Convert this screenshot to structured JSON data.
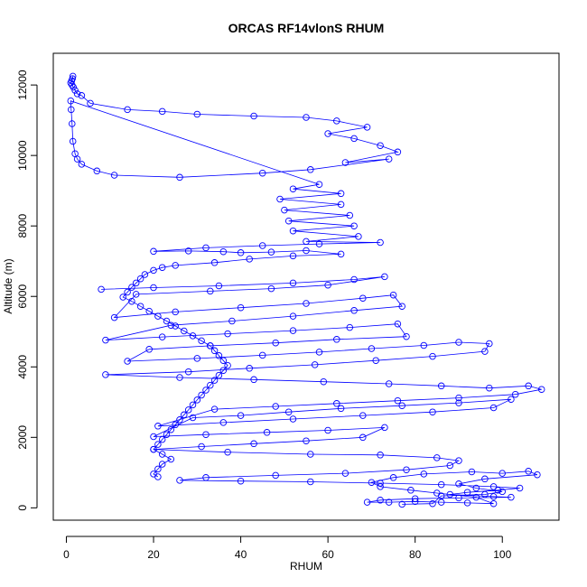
{
  "chart_data": {
    "type": "line",
    "title": "ORCAS RF14vlonS RHUM",
    "xlabel": "RHUM",
    "ylabel": "Altitude (m)",
    "xlim": [
      -3,
      113
    ],
    "ylim": [
      -350,
      12900
    ],
    "xticks": [
      0,
      20,
      40,
      60,
      80,
      100
    ],
    "yticks": [
      0,
      2000,
      4000,
      6000,
      8000,
      10000,
      12000
    ],
    "grid": false,
    "legend": "none",
    "marker": "open-circle",
    "color": "#0000ff",
    "series": [
      {
        "points": [
          [
            1.5,
            12250
          ],
          [
            1.4,
            12180
          ],
          [
            1.2,
            12120
          ],
          [
            1.0,
            12060
          ],
          [
            1.3,
            12000
          ],
          [
            1.6,
            11940
          ],
          [
            2.0,
            11850
          ],
          [
            2.5,
            11750
          ],
          [
            3.5,
            11700
          ],
          [
            5.5,
            11480
          ],
          [
            14,
            11300
          ],
          [
            22,
            11250
          ],
          [
            30,
            11170
          ],
          [
            43,
            11120
          ],
          [
            55,
            11080
          ],
          [
            62,
            10980
          ],
          [
            69,
            10800
          ],
          [
            60,
            10620
          ],
          [
            66,
            10480
          ],
          [
            72,
            10280
          ],
          [
            76,
            10100
          ],
          [
            64,
            9800
          ],
          [
            74,
            9900
          ],
          [
            56,
            9600
          ],
          [
            45,
            9500
          ],
          [
            26,
            9380
          ],
          [
            11,
            9440
          ],
          [
            7,
            9560
          ],
          [
            3.5,
            9750
          ],
          [
            2.5,
            9900
          ],
          [
            2.0,
            10050
          ],
          [
            1.5,
            10400
          ],
          [
            1.3,
            10900
          ],
          [
            1.1,
            11300
          ],
          [
            1.0,
            11550
          ],
          [
            58,
            9180
          ],
          [
            52,
            9050
          ],
          [
            63,
            8920
          ],
          [
            49,
            8760
          ],
          [
            63,
            8610
          ],
          [
            50,
            8450
          ],
          [
            65,
            8300
          ],
          [
            51,
            8140
          ],
          [
            66,
            8000
          ],
          [
            52,
            7860
          ],
          [
            67,
            7700
          ],
          [
            55,
            7560
          ],
          [
            72,
            7530
          ],
          [
            58,
            7490
          ],
          [
            45,
            7440
          ],
          [
            32,
            7380
          ],
          [
            20,
            7280
          ],
          [
            28,
            7290
          ],
          [
            36,
            7270
          ],
          [
            40,
            7240
          ],
          [
            47,
            7260
          ],
          [
            55,
            7300
          ],
          [
            63,
            7200
          ],
          [
            52,
            7150
          ],
          [
            42,
            7060
          ],
          [
            34,
            6960
          ],
          [
            25,
            6880
          ],
          [
            22,
            6820
          ],
          [
            20,
            6740
          ],
          [
            18,
            6620
          ],
          [
            17,
            6500
          ],
          [
            16,
            6380
          ],
          [
            15,
            6260
          ],
          [
            14,
            6120
          ],
          [
            13,
            5980
          ],
          [
            15,
            5860
          ],
          [
            17,
            5720
          ],
          [
            19,
            5580
          ],
          [
            21,
            5440
          ],
          [
            23,
            5300
          ],
          [
            25,
            5160
          ],
          [
            27,
            5020
          ],
          [
            29,
            4880
          ],
          [
            31,
            4740
          ],
          [
            33,
            4600
          ],
          [
            34,
            4460
          ],
          [
            35,
            4320
          ],
          [
            36,
            4180
          ],
          [
            37,
            4040
          ],
          [
            36,
            3900
          ],
          [
            35,
            3760
          ],
          [
            34,
            3620
          ],
          [
            33,
            3480
          ],
          [
            32,
            3340
          ],
          [
            31,
            3200
          ],
          [
            30,
            3060
          ],
          [
            29,
            2920
          ],
          [
            28,
            2780
          ],
          [
            27,
            2640
          ],
          [
            26,
            2500
          ],
          [
            25,
            2360
          ],
          [
            24,
            2220
          ],
          [
            23,
            2080
          ],
          [
            22,
            1940
          ],
          [
            21,
            1800
          ],
          [
            20,
            1660
          ],
          [
            22,
            1520
          ],
          [
            24,
            1380
          ],
          [
            22,
            1240
          ],
          [
            21,
            1100
          ],
          [
            20,
            960
          ],
          [
            21,
            880
          ]
        ]
      },
      {
        "points": [
          [
            8,
            6200
          ],
          [
            20,
            6250
          ],
          [
            35,
            6300
          ],
          [
            52,
            6380
          ],
          [
            66,
            6480
          ],
          [
            73,
            6560
          ],
          [
            60,
            6320
          ],
          [
            47,
            6220
          ],
          [
            33,
            6150
          ],
          [
            16,
            6060
          ],
          [
            11,
            5400
          ],
          [
            25,
            5560
          ],
          [
            40,
            5680
          ],
          [
            55,
            5800
          ],
          [
            68,
            5950
          ],
          [
            75,
            6040
          ],
          [
            77,
            5720
          ],
          [
            66,
            5600
          ],
          [
            52,
            5440
          ],
          [
            38,
            5300
          ],
          [
            24,
            5180
          ],
          [
            9,
            4760
          ],
          [
            22,
            4850
          ],
          [
            37,
            4940
          ],
          [
            52,
            5030
          ],
          [
            65,
            5120
          ],
          [
            76,
            5220
          ],
          [
            78,
            4860
          ],
          [
            62,
            4780
          ],
          [
            48,
            4680
          ],
          [
            33,
            4600
          ],
          [
            19,
            4500
          ],
          [
            14,
            4160
          ],
          [
            30,
            4240
          ],
          [
            45,
            4330
          ],
          [
            58,
            4420
          ],
          [
            70,
            4520
          ],
          [
            82,
            4610
          ],
          [
            90,
            4700
          ],
          [
            97,
            4660
          ],
          [
            96,
            4440
          ],
          [
            84,
            4300
          ],
          [
            71,
            4180
          ],
          [
            57,
            4060
          ],
          [
            42,
            3960
          ],
          [
            28,
            3860
          ],
          [
            9,
            3780
          ],
          [
            26,
            3700
          ],
          [
            43,
            3640
          ],
          [
            59,
            3580
          ],
          [
            74,
            3520
          ],
          [
            86,
            3460
          ],
          [
            97,
            3400
          ],
          [
            106,
            3460
          ],
          [
            109,
            3360
          ],
          [
            103,
            3220
          ],
          [
            90,
            3120
          ],
          [
            76,
            3040
          ],
          [
            62,
            2960
          ],
          [
            48,
            2880
          ],
          [
            34,
            2800
          ],
          [
            21,
            2320
          ],
          [
            36,
            2420
          ],
          [
            52,
            2520
          ],
          [
            68,
            2620
          ],
          [
            84,
            2720
          ],
          [
            98,
            2840
          ],
          [
            102,
            3080
          ],
          [
            90,
            2980
          ],
          [
            77,
            2900
          ],
          [
            63,
            2820
          ],
          [
            51,
            2720
          ],
          [
            40,
            2620
          ],
          [
            29,
            2560
          ],
          [
            20,
            2020
          ],
          [
            32,
            2080
          ],
          [
            46,
            2140
          ],
          [
            60,
            2200
          ],
          [
            73,
            2280
          ],
          [
            68,
            2000
          ],
          [
            55,
            1900
          ],
          [
            43,
            1820
          ],
          [
            31,
            1740
          ],
          [
            20,
            1660
          ],
          [
            37,
            1580
          ],
          [
            56,
            1520
          ],
          [
            72,
            1500
          ],
          [
            85,
            1420
          ],
          [
            90,
            1340
          ],
          [
            88,
            1200
          ],
          [
            78,
            1080
          ],
          [
            64,
            980
          ],
          [
            48,
            920
          ],
          [
            32,
            860
          ],
          [
            26,
            780
          ],
          [
            40,
            760
          ],
          [
            56,
            740
          ],
          [
            72,
            700
          ],
          [
            86,
            660
          ],
          [
            98,
            600
          ],
          [
            104,
            560
          ],
          [
            99,
            500
          ],
          [
            92,
            440
          ],
          [
            88,
            380
          ],
          [
            98,
            320
          ],
          [
            102,
            300
          ],
          [
            90,
            280
          ],
          [
            80,
            260
          ],
          [
            72,
            220
          ],
          [
            69,
            160
          ],
          [
            74,
            160
          ],
          [
            80,
            180
          ],
          [
            86,
            160
          ],
          [
            92,
            140
          ],
          [
            98,
            120
          ],
          [
            94,
            300
          ],
          [
            85,
            420
          ],
          [
            79,
            500
          ],
          [
            72,
            600
          ],
          [
            70,
            720
          ],
          [
            75,
            860
          ],
          [
            82,
            960
          ],
          [
            93,
            1020
          ],
          [
            100,
            980
          ],
          [
            106,
            1040
          ],
          [
            108,
            940
          ],
          [
            96,
            820
          ],
          [
            90,
            680
          ],
          [
            94,
            560
          ],
          [
            100,
            460
          ],
          [
            96,
            380
          ],
          [
            86,
            340
          ],
          [
            84,
            120
          ],
          [
            77,
            100
          ]
        ]
      }
    ]
  }
}
